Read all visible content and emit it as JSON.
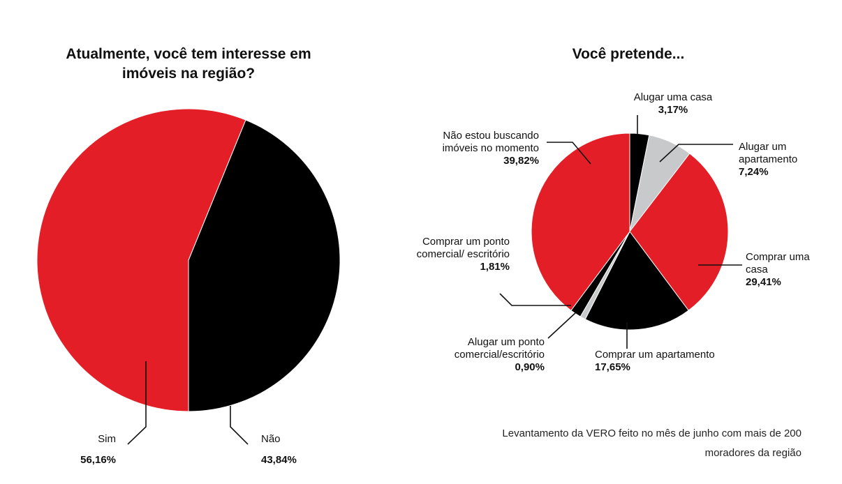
{
  "chart_data": [
    {
      "type": "pie",
      "title": "Atualmente, você tem interesse em imóveis na região?",
      "slices": [
        {
          "label": "Sim",
          "value": 56.16,
          "value_label": "56,16%",
          "color": "#e31e26"
        },
        {
          "label": "Não",
          "value": 43.84,
          "value_label": "43,84%",
          "color": "#000000"
        }
      ]
    },
    {
      "type": "pie",
      "title": "Você pretende...",
      "slices": [
        {
          "label": "Alugar uma casa",
          "value": 3.17,
          "value_label": "3,17%",
          "color": "#000000"
        },
        {
          "label": "Alugar um apartamento",
          "value": 7.24,
          "value_label": "7,24%",
          "color": "#c8c9ca"
        },
        {
          "label": "Comprar uma casa",
          "value": 29.41,
          "value_label": "29,41%",
          "color": "#e31e26"
        },
        {
          "label": "Comprar um apartamento",
          "value": 17.65,
          "value_label": "17,65%",
          "color": "#000000"
        },
        {
          "label": "Alugar um ponto comercial/escritório",
          "value": 0.9,
          "value_label": "0,90%",
          "color": "#c8c9ca"
        },
        {
          "label": "Comprar um ponto comercial/ escritório",
          "value": 1.81,
          "value_label": "1,81%",
          "color": "#000000"
        },
        {
          "label": "Não estou buscando imóveis no momento",
          "value": 39.82,
          "value_label": "39,82%",
          "color": "#e31e26"
        }
      ]
    }
  ],
  "footnote": "Levantamento da VERO feito no mês de junho com mais de 200 moradores da região"
}
